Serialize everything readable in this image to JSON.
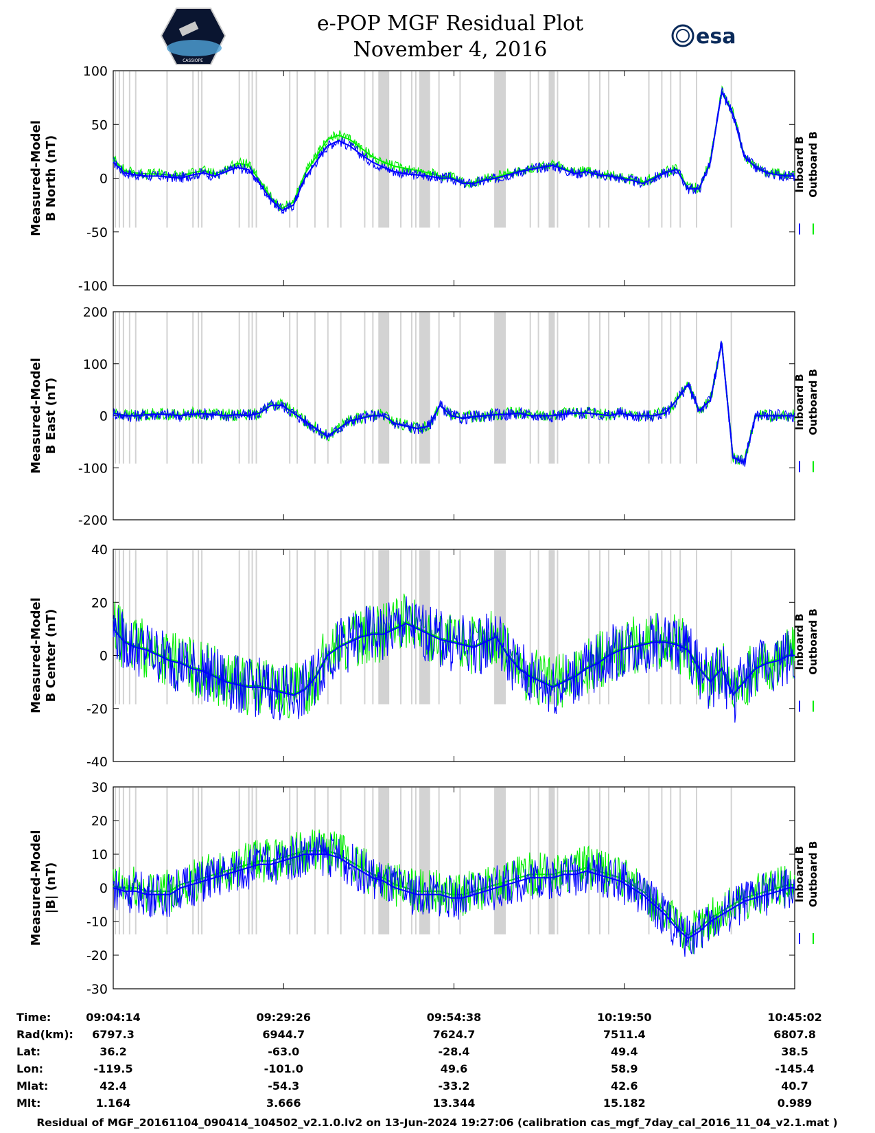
{
  "header": {
    "title": "e-POP MGF Residual Plot",
    "subtitle": "November 4, 2016",
    "logo_left_text": "CASSIOPE",
    "logo_right_text": "esa"
  },
  "colors": {
    "inboard": "#0000ff",
    "outboard": "#00ee00",
    "gap": "#d3d3d3"
  },
  "legend": {
    "inboard": "Inboard B",
    "outboard": "Outboard B"
  },
  "chart_data": [
    {
      "type": "line",
      "ylabel_line1": "Measured-Model",
      "ylabel_line2": "B North (nT)",
      "ylim": [
        -100,
        100
      ],
      "yticks": [
        100,
        50,
        0,
        -50,
        -100
      ],
      "x": [
        0,
        100,
        200,
        300,
        400,
        500,
        600,
        700,
        800,
        900,
        1000,
        1100,
        1200,
        1300,
        1400,
        1500,
        1600,
        1700,
        1800,
        1900,
        2000,
        2100,
        2200,
        2300,
        2400,
        2500,
        2600,
        2700,
        2800,
        2900,
        3000,
        3100,
        3200,
        3300,
        3400,
        3500,
        3600,
        3700,
        3800,
        3900,
        4000,
        4100,
        4200,
        4300,
        4400,
        4500,
        4600,
        4700,
        4800,
        4900,
        5000,
        5100,
        5200,
        5300,
        5400,
        5500,
        5600,
        5700,
        5800,
        5900,
        6000,
        6048
      ],
      "series": [
        {
          "name": "Inboard B",
          "values": [
            15,
            5,
            3,
            2,
            2,
            1,
            0,
            3,
            5,
            2,
            6,
            10,
            8,
            -5,
            -20,
            -30,
            -25,
            0,
            15,
            30,
            35,
            30,
            22,
            15,
            10,
            6,
            4,
            3,
            2,
            0,
            0,
            -5,
            -5,
            -2,
            0,
            3,
            6,
            8,
            10,
            12,
            8,
            4,
            6,
            3,
            2,
            0,
            -2,
            -5,
            0,
            5,
            8,
            -10,
            -10,
            15,
            80,
            60,
            20,
            10,
            5,
            3,
            2,
            2
          ]
        },
        {
          "name": "Outboard B",
          "values": [
            18,
            7,
            5,
            4,
            4,
            3,
            2,
            5,
            7,
            4,
            8,
            14,
            12,
            -2,
            -18,
            -28,
            -22,
            4,
            20,
            36,
            40,
            36,
            28,
            20,
            15,
            11,
            9,
            7,
            5,
            2,
            1,
            -4,
            -4,
            -1,
            1,
            4,
            7,
            9,
            11,
            13,
            9,
            5,
            7,
            4,
            3,
            1,
            -1,
            -4,
            1,
            6,
            9,
            -9,
            -9,
            16,
            81,
            61,
            21,
            11,
            6,
            4,
            3,
            3
          ]
        }
      ]
    },
    {
      "type": "line",
      "ylabel_line1": "Measured-Model",
      "ylabel_line2": "B East (nT)",
      "ylim": [
        -200,
        200
      ],
      "yticks": [
        200,
        100,
        0,
        -100,
        -200
      ],
      "x": [
        0,
        100,
        200,
        300,
        400,
        500,
        600,
        700,
        800,
        900,
        1000,
        1100,
        1200,
        1300,
        1400,
        1500,
        1600,
        1700,
        1800,
        1900,
        2000,
        2100,
        2200,
        2300,
        2400,
        2500,
        2600,
        2700,
        2800,
        2900,
        3000,
        3100,
        3200,
        3300,
        3400,
        3500,
        3600,
        3700,
        3800,
        3900,
        4000,
        4100,
        4200,
        4300,
        4400,
        4500,
        4600,
        4700,
        4800,
        4900,
        5000,
        5100,
        5200,
        5300,
        5400,
        5500,
        5600,
        5700,
        5800,
        5900,
        6000,
        6048
      ],
      "series": [
        {
          "name": "Inboard B",
          "values": [
            5,
            0,
            0,
            2,
            3,
            2,
            0,
            3,
            4,
            2,
            0,
            2,
            0,
            5,
            20,
            20,
            5,
            -10,
            -25,
            -40,
            -25,
            -10,
            -5,
            0,
            0,
            -15,
            -20,
            -25,
            -20,
            20,
            0,
            -5,
            -2,
            0,
            2,
            3,
            5,
            0,
            0,
            0,
            3,
            5,
            5,
            3,
            0,
            5,
            0,
            0,
            0,
            5,
            30,
            60,
            10,
            30,
            140,
            -80,
            -90,
            0,
            0,
            0,
            0,
            0
          ]
        },
        {
          "name": "Outboard B",
          "values": [
            6,
            1,
            1,
            3,
            4,
            3,
            1,
            4,
            5,
            3,
            1,
            3,
            1,
            6,
            21,
            21,
            6,
            -9,
            -24,
            -39,
            -24,
            -9,
            -4,
            1,
            1,
            -14,
            -19,
            -24,
            -19,
            21,
            1,
            -4,
            -1,
            1,
            3,
            4,
            6,
            1,
            1,
            1,
            4,
            6,
            6,
            4,
            1,
            6,
            1,
            1,
            1,
            6,
            31,
            61,
            11,
            31,
            141,
            -79,
            -89,
            1,
            1,
            1,
            1,
            1
          ]
        }
      ]
    },
    {
      "type": "line",
      "ylabel_line1": "Measured-Model",
      "ylabel_line2": "B Center (nT)",
      "ylim": [
        -40,
        40
      ],
      "yticks": [
        40,
        20,
        0,
        -20,
        -40
      ],
      "x": [
        0,
        100,
        200,
        300,
        400,
        500,
        600,
        700,
        800,
        900,
        1000,
        1100,
        1200,
        1300,
        1400,
        1500,
        1600,
        1700,
        1800,
        1900,
        2000,
        2100,
        2200,
        2300,
        2400,
        2500,
        2600,
        2700,
        2800,
        2900,
        3000,
        3100,
        3200,
        3300,
        3400,
        3500,
        3600,
        3700,
        3800,
        3900,
        4000,
        4100,
        4200,
        4300,
        4400,
        4500,
        4600,
        4700,
        4800,
        4900,
        5000,
        5100,
        5200,
        5300,
        5400,
        5500,
        5600,
        5700,
        5800,
        5900,
        6000,
        6048
      ],
      "series": [
        {
          "name": "Inboard B",
          "values": [
            10,
            5,
            3,
            2,
            0,
            -2,
            -3,
            -5,
            -6,
            -8,
            -10,
            -11,
            -12,
            -12,
            -13,
            -14,
            -15,
            -13,
            -8,
            0,
            3,
            5,
            7,
            8,
            8,
            10,
            12,
            10,
            8,
            6,
            5,
            4,
            3,
            5,
            7,
            0,
            -5,
            -8,
            -10,
            -12,
            -10,
            -8,
            -5,
            -3,
            0,
            2,
            3,
            4,
            5,
            5,
            4,
            2,
            -5,
            -10,
            -5,
            -15,
            -10,
            -5,
            -3,
            -2,
            0,
            0
          ]
        },
        {
          "name": "Outboard B",
          "values": [
            10.5,
            5.5,
            3.5,
            2.5,
            0.5,
            -1.5,
            -2.5,
            -4.5,
            -5.5,
            -7.5,
            -9.5,
            -10.5,
            -11.5,
            -11.5,
            -12.5,
            -13.5,
            -14.5,
            -12.5,
            -7.5,
            0.5,
            3.5,
            5.5,
            7.5,
            8.5,
            8.5,
            10.5,
            12.5,
            10.5,
            8.5,
            6.5,
            5.5,
            4.5,
            3.5,
            5.5,
            7.5,
            0.5,
            -4.5,
            -7.5,
            -9.5,
            -11.5,
            -9.5,
            -7.5,
            -4.5,
            -2.5,
            0.5,
            2.5,
            3.5,
            4.5,
            5.5,
            5.5,
            4.5,
            2.5,
            -4.5,
            -9.5,
            -4.5,
            -14.5,
            -9.5,
            -4.5,
            -2.5,
            -1.5,
            0.5,
            0.5
          ]
        }
      ]
    },
    {
      "type": "line",
      "ylabel_line1": "Measured-Model",
      "ylabel_line2": "|B| (nT)",
      "ylim": [
        -30,
        30
      ],
      "yticks": [
        30,
        20,
        10,
        0,
        -10,
        -20,
        -30
      ],
      "x": [
        0,
        100,
        200,
        300,
        400,
        500,
        600,
        700,
        800,
        900,
        1000,
        1100,
        1200,
        1300,
        1400,
        1500,
        1600,
        1700,
        1800,
        1900,
        2000,
        2100,
        2200,
        2300,
        2400,
        2500,
        2600,
        2700,
        2800,
        2900,
        3000,
        3100,
        3200,
        3300,
        3400,
        3500,
        3600,
        3700,
        3800,
        3900,
        4000,
        4100,
        4200,
        4300,
        4400,
        4500,
        4600,
        4700,
        4800,
        4900,
        5000,
        5100,
        5200,
        5300,
        5400,
        5500,
        5600,
        5700,
        5800,
        5900,
        6000,
        6048
      ],
      "series": [
        {
          "name": "Inboard B",
          "values": [
            0,
            -1,
            -1,
            -2,
            -2,
            -2,
            0,
            1,
            2,
            3,
            4,
            5,
            6,
            7,
            7,
            8,
            9,
            10,
            10,
            10,
            9,
            7,
            5,
            3,
            2,
            0,
            -1,
            -2,
            -2,
            -2,
            -3,
            -3,
            -2,
            -1,
            0,
            1,
            2,
            3,
            3,
            3,
            4,
            4,
            5,
            4,
            3,
            2,
            0,
            -2,
            -5,
            -8,
            -12,
            -15,
            -13,
            -10,
            -8,
            -6,
            -4,
            -3,
            -2,
            -1,
            0,
            0
          ]
        },
        {
          "name": "Outboard B",
          "values": [
            0.5,
            0,
            0,
            -1,
            -1,
            -1,
            1,
            2,
            3,
            4,
            5,
            6,
            7,
            8,
            8,
            9,
            10,
            11,
            11,
            11,
            10,
            8,
            6,
            4,
            3,
            1,
            0,
            -1,
            -1,
            -1,
            -2,
            -2,
            -1,
            0,
            1,
            2,
            3,
            4,
            4,
            4,
            5,
            5,
            6,
            5,
            4,
            3,
            1,
            -1,
            -4,
            -7,
            -11,
            -14,
            -12,
            -9,
            -7,
            -5,
            -3,
            -2,
            -1,
            0,
            1,
            1
          ]
        }
      ]
    }
  ],
  "x_axis": {
    "row_labels": [
      "Time:",
      "Rad(km):",
      "Lat:",
      "Lon:",
      "Mlat:",
      "Mlt:"
    ],
    "columns": [
      {
        "time": "09:04:14",
        "rad": "6797.3",
        "lat": "36.2",
        "lon": "-119.5",
        "mlat": "42.4",
        "mlt": "1.164"
      },
      {
        "time": "09:29:26",
        "rad": "6944.7",
        "lat": "-63.0",
        "lon": "-101.0",
        "mlat": "-54.3",
        "mlt": "3.666"
      },
      {
        "time": "09:54:38",
        "rad": "7624.7",
        "lat": "-28.4",
        "lon": "49.6",
        "mlat": "-33.2",
        "mlt": "13.344"
      },
      {
        "time": "10:19:50",
        "rad": "7511.4",
        "lat": "49.4",
        "lon": "58.9",
        "mlat": "42.6",
        "mlt": "15.182"
      },
      {
        "time": "10:45:02",
        "rad": "6807.8",
        "lat": "38.5",
        "lon": "-145.4",
        "mlat": "40.7",
        "mlt": "0.989"
      }
    ]
  },
  "footer": "Residual of MGF_20161104_090414_104502_v2.1.0.lv2 on 13-Jun-2024 19:27:06 (calibration cas_mgf_7day_cal_2016_11_04_v2.1.mat )"
}
